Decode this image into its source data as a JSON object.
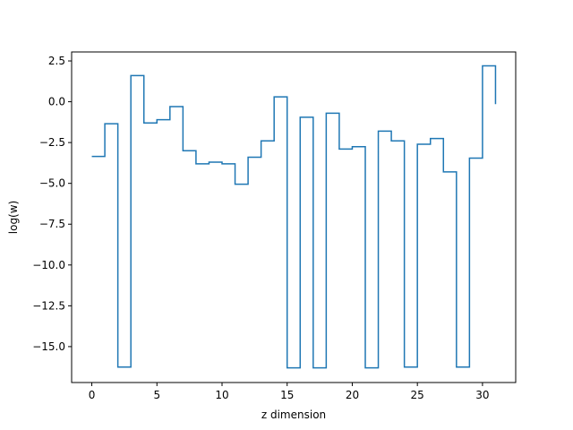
{
  "chart_data": {
    "type": "line",
    "drawstyle": "steps-post",
    "xlabel": "z dimension",
    "ylabel": "log(w)",
    "xlim": [
      -1.55,
      32.55
    ],
    "ylim": [
      -17.2,
      3.05
    ],
    "grid": false,
    "legend": "none",
    "xticks": [
      0,
      5,
      10,
      15,
      20,
      25,
      30
    ],
    "xtick_labels": [
      "0",
      "5",
      "10",
      "15",
      "20",
      "25",
      "30"
    ],
    "yticks": [
      2.5,
      0.0,
      -2.5,
      -5.0,
      -7.5,
      -10.0,
      -12.5,
      -15.0
    ],
    "ytick_labels": [
      "2.5",
      "0.0",
      "−2.5",
      "−5.0",
      "−7.5",
      "−10.0",
      "−12.5",
      "−15.0"
    ],
    "series": [
      {
        "color": "#1f77b4",
        "x": [
          0,
          1,
          2,
          3,
          4,
          5,
          6,
          7,
          8,
          9,
          10,
          11,
          12,
          13,
          14,
          15,
          16,
          17,
          18,
          19,
          20,
          21,
          22,
          23,
          24,
          25,
          26,
          27,
          28,
          29,
          30,
          31
        ],
        "y": [
          -3.35,
          -1.35,
          -16.25,
          1.6,
          -1.3,
          -1.1,
          -0.3,
          -3.0,
          -3.8,
          -3.7,
          -3.8,
          -5.05,
          -3.4,
          -2.4,
          0.3,
          -16.3,
          -0.95,
          -16.3,
          -0.7,
          -2.9,
          -2.75,
          -16.3,
          -1.8,
          -2.4,
          -16.25,
          -2.6,
          -2.25,
          -4.3,
          -16.25,
          -3.45,
          2.2,
          -0.15
        ]
      }
    ]
  }
}
